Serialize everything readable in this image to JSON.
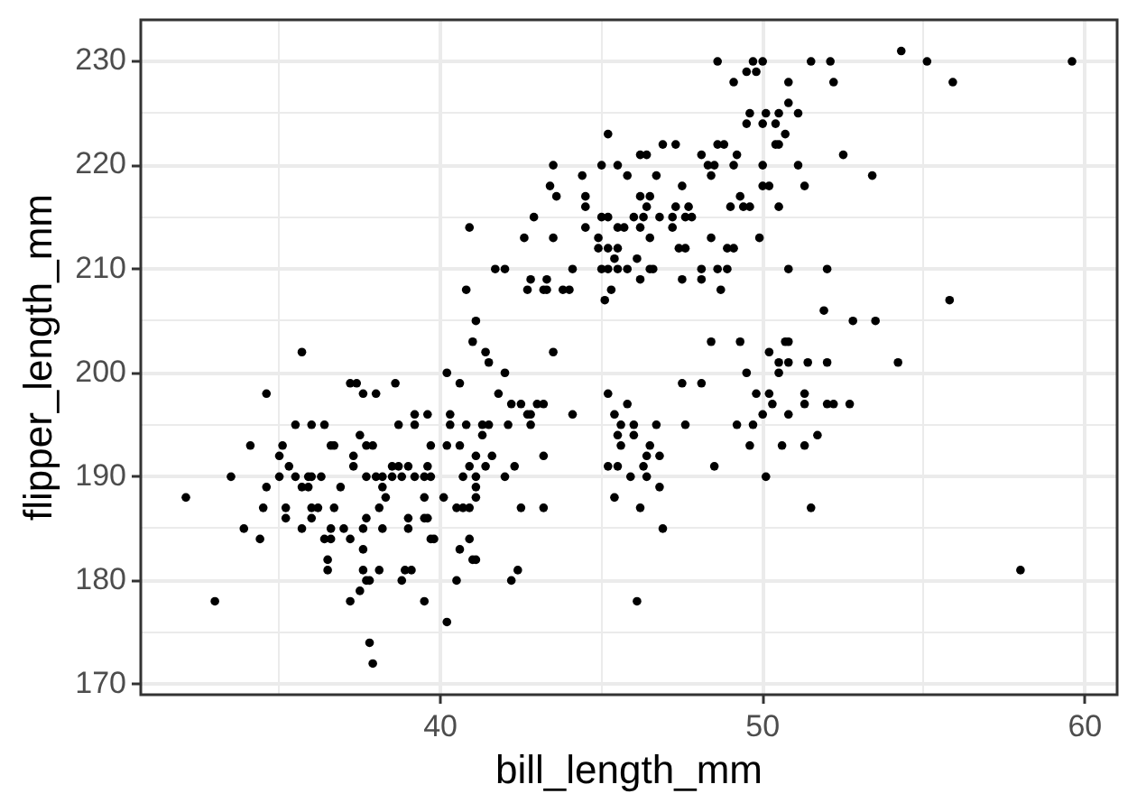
{
  "chart_data": {
    "type": "scatter",
    "xlabel": "bill_length_mm",
    "ylabel": "flipper_length_mm",
    "color": "#000000",
    "marker": "circle",
    "grid": true,
    "xlim": [
      30.7,
      61.0
    ],
    "xticks": [
      {
        "value": 35,
        "label": null
      },
      40,
      {
        "value": 45,
        "label": null
      },
      50,
      {
        "value": 55,
        "label": null
      },
      60
    ],
    "ylim": [
      169,
      234
    ],
    "yticks": [
      170,
      {
        "value": 175,
        "label": null
      },
      180,
      {
        "value": 185,
        "label": null
      },
      190,
      {
        "value": 195,
        "label": null
      },
      200,
      {
        "value": 205,
        "label": null
      },
      210,
      {
        "value": 215,
        "label": null
      },
      220,
      {
        "value": 225,
        "label": null
      },
      230
    ],
    "x": [
      35.7,
      48.6,
      49.7,
      50.0,
      49.1,
      49.5,
      49.8,
      50.8,
      50.8,
      49.6,
      50.1,
      50.5,
      49.5,
      50.0,
      50.4,
      50.7,
      50.4,
      50.5,
      45.2,
      46.9,
      47.3,
      46.2,
      46.4,
      48.1,
      48.6,
      48.8,
      49.2,
      43.5,
      45.0,
      45.5,
      48.3,
      48.5,
      49.1,
      50.0,
      44.4,
      45.8,
      46.7,
      48.4,
      43.4,
      43.6,
      47.5,
      50.0,
      50.2,
      44.5,
      44.5,
      46.2,
      46.5,
      49.3,
      46.4,
      47.3,
      47.7,
      49.0,
      49.4,
      49.6,
      50.5,
      40.9,
      42.9,
      45.0,
      45.2,
      46.0,
      46.3,
      46.8,
      47.2,
      47.6,
      47.8,
      45.5,
      45.7,
      46.2,
      47.2,
      44.5,
      42.6,
      43.5,
      44.9,
      46.5,
      48.4,
      49.9,
      44.9,
      45.2,
      45.5,
      47.4,
      47.6,
      48.9,
      49.1,
      45.4,
      46.1,
      41.7,
      42.0,
      44.1,
      45.0,
      45.2,
      45.5,
      45.8,
      46.5,
      46.6,
      48.1,
      48.6,
      48.9,
      50.8,
      40.8,
      42.7,
      43.2,
      43.3,
      42.8,
      43.3,
      43.8,
      44.0,
      46.2,
      47.5,
      48.1,
      48.7,
      45.3,
      45.1,
      41.1,
      41.0,
      41.4,
      43.5,
      48.4,
      49.3,
      50.2,
      50.7,
      50.8,
      54.3,
      51.5,
      52.1,
      55.1,
      59.6,
      52.2,
      55.9,
      51.1,
      52.5,
      51.1,
      53.4,
      51.3,
      52.0,
      55.8,
      51.9,
      52.8,
      53.5,
      34.6,
      37.2,
      37.4,
      37.6,
      38.0,
      38.6,
      40.2,
      40.6,
      35.5,
      36.0,
      36.4,
      38.7,
      39.2,
      39.6,
      39.2,
      40.3,
      40.3,
      40.8,
      37.5,
      34.1,
      35.1,
      36.6,
      36.7,
      37.7,
      37.9,
      39.7,
      40.2,
      40.6,
      35.0,
      37.3,
      35.3,
      37.3,
      38.5,
      38.7,
      39.0,
      39.6,
      40.9,
      33.5,
      35.0,
      35.5,
      35.9,
      36.0,
      36.3,
      37.7,
      38.0,
      38.2,
      38.5,
      38.8,
      39.2,
      39.5,
      39.7,
      40.7,
      35.7,
      35.9,
      36.9,
      38.2,
      34.6,
      32.1,
      38.3,
      39.5,
      40.1,
      34.5,
      35.2,
      36.0,
      36.2,
      36.7,
      38.1,
      40.5,
      40.7,
      35.2,
      36.0,
      37.7,
      39.0,
      39.5,
      39.6,
      33.9,
      35.7,
      36.6,
      37.0,
      37.6,
      38.2,
      39.0,
      34.4,
      36.4,
      36.6,
      37.2,
      39.7,
      39.8,
      40.9,
      37.6,
      40.6,
      36.5,
      36.5,
      41.0,
      37.6,
      38.1,
      38.9,
      39.1,
      37.7,
      37.8,
      38.8,
      40.5,
      37.5,
      37.2,
      33.0,
      39.5,
      40.2,
      37.8,
      37.9,
      41.5,
      42.0,
      41.8,
      42.2,
      42.5,
      43.0,
      43.2,
      42.7,
      42.8,
      44.1,
      41.3,
      41.5,
      42.1,
      42.8,
      41.3,
      41.1,
      41.6,
      43.2,
      41.4,
      42.3,
      41.1,
      42.0,
      41.1,
      41.1,
      40.9,
      42.5,
      43.2,
      41.1,
      42.4,
      42.2,
      45.2,
      45.8,
      45.4,
      45.6,
      46.0,
      46.7,
      45.5,
      46.0,
      45.6,
      46.5,
      46.4,
      46.8,
      45.2,
      45.5,
      46.3,
      45.9,
      46.4,
      46.8,
      45.4,
      46.2,
      46.9,
      46.1,
      47.5,
      48.1,
      47.6,
      48.5,
      49.2,
      49.7,
      49.6,
      50.1,
      49.5,
      49.8,
      50.2,
      50.0,
      50.3,
      50.6,
      50.8,
      50.5,
      50.5,
      50.8,
      51.4,
      52.0,
      54.2,
      51.3,
      51.3,
      52.0,
      52.2,
      52.7,
      51.7,
      51.3,
      51.5,
      58.0
    ],
    "values": [
      202,
      230,
      230,
      230,
      228,
      229,
      229,
      228,
      226,
      225,
      225,
      225,
      224,
      224,
      224,
      223,
      222,
      222,
      223,
      222,
      222,
      221,
      221,
      221,
      222,
      222,
      221,
      220,
      220,
      220,
      220,
      220,
      220,
      220,
      219,
      219,
      219,
      219,
      218,
      217,
      218,
      218,
      218,
      217,
      216,
      217,
      217,
      217,
      216,
      216,
      216,
      216,
      216,
      216,
      216,
      214,
      215,
      215,
      215,
      215,
      215,
      215,
      215,
      215,
      215,
      214,
      214,
      214,
      214,
      214,
      213,
      213,
      213,
      213,
      213,
      213,
      212,
      212,
      212,
      212,
      212,
      212,
      212,
      211,
      211,
      210,
      210,
      210,
      210,
      210,
      210,
      210,
      210,
      210,
      210,
      210,
      210,
      210,
      208,
      208,
      208,
      208,
      209,
      209,
      208,
      208,
      209,
      209,
      209,
      208,
      208,
      207,
      205,
      203,
      202,
      202,
      203,
      203,
      202,
      203,
      203,
      231,
      230,
      230,
      230,
      230,
      228,
      228,
      225,
      221,
      220,
      219,
      218,
      210,
      207,
      206,
      205,
      205,
      198,
      199,
      199,
      198,
      198,
      199,
      200,
      199,
      195,
      195,
      195,
      195,
      196,
      196,
      195,
      196,
      195,
      195,
      194,
      193,
      193,
      193,
      193,
      193,
      193,
      193,
      193,
      193,
      192,
      192,
      191,
      191,
      191,
      191,
      191,
      191,
      191,
      190,
      190,
      190,
      190,
      190,
      190,
      190,
      190,
      190,
      190,
      190,
      190,
      190,
      190,
      190,
      189,
      189,
      189,
      189,
      189,
      188,
      188,
      188,
      188,
      187,
      187,
      187,
      187,
      187,
      187,
      187,
      187,
      186,
      186,
      186,
      186,
      186,
      186,
      185,
      185,
      185,
      185,
      185,
      185,
      185,
      184,
      184,
      184,
      184,
      184,
      184,
      184,
      183,
      183,
      182,
      181,
      182,
      181,
      181,
      181,
      181,
      180,
      180,
      180,
      180,
      179,
      178,
      178,
      178,
      176,
      174,
      172,
      201,
      200,
      198,
      197,
      197,
      197,
      197,
      196,
      196,
      196,
      195,
      195,
      195,
      195,
      194,
      192,
      192,
      192,
      191,
      191,
      190,
      190,
      189,
      188,
      187,
      187,
      187,
      182,
      181,
      180,
      198,
      197,
      196,
      195,
      195,
      195,
      194,
      194,
      193,
      193,
      192,
      192,
      191,
      191,
      191,
      190,
      190,
      189,
      188,
      187,
      185,
      178,
      199,
      199,
      195,
      191,
      195,
      195,
      193,
      190,
      200,
      198,
      198,
      196,
      197,
      193,
      196,
      201,
      200,
      201,
      201,
      201,
      201,
      198,
      197,
      197,
      197,
      197,
      194,
      193,
      187,
      181
    ]
  }
}
